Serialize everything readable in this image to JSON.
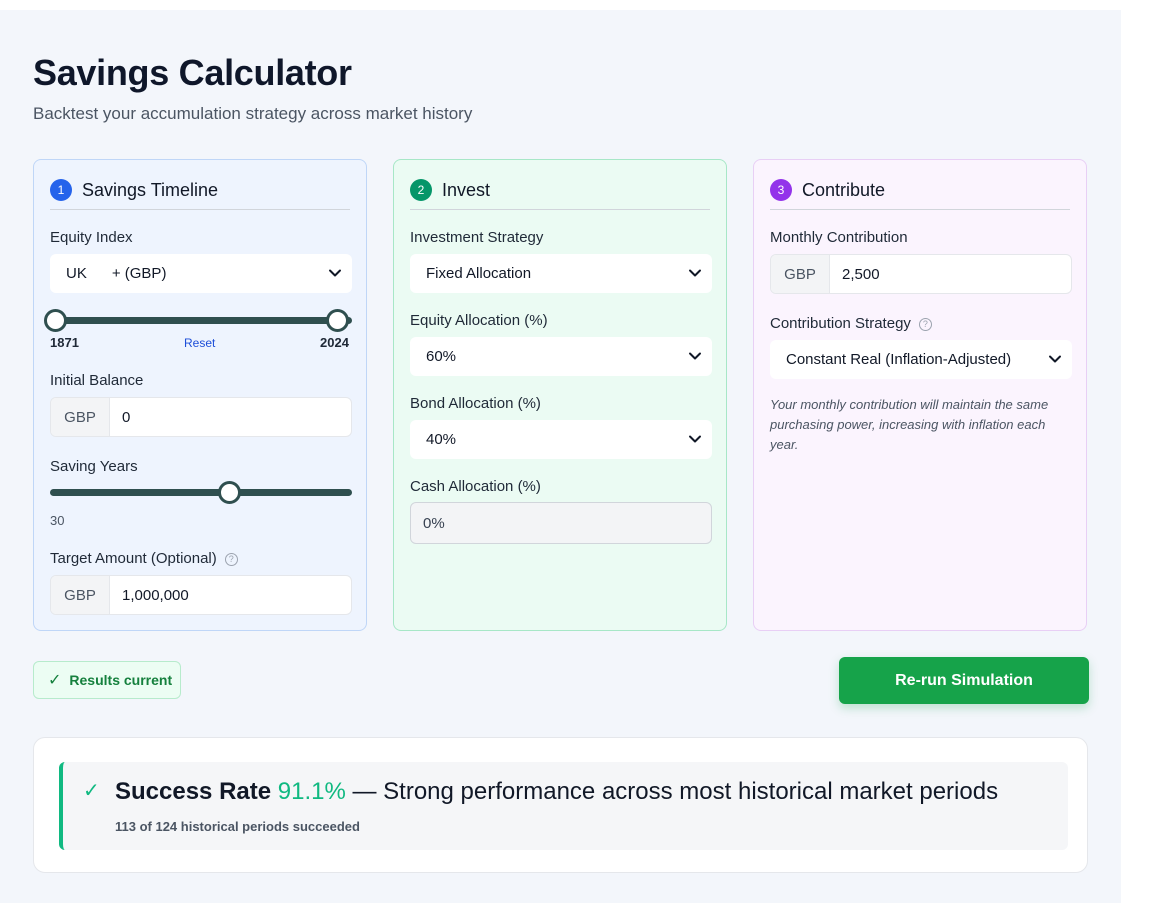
{
  "header": {
    "title": "Savings Calculator",
    "subtitle": "Backtest your accumulation strategy across market history"
  },
  "timeline": {
    "step": "1",
    "title": "Savings Timeline",
    "equity_index_label": "Equity Index",
    "equity_index_value": "UK      + (GBP)",
    "range_start": "1871",
    "range_end": "2024",
    "reset_label": "Reset",
    "initial_balance_label": "Initial Balance",
    "currency": "GBP",
    "initial_balance_value": "0",
    "saving_years_label": "Saving Years",
    "saving_years_value": "30",
    "saving_years_fraction": 0.59,
    "target_label": "Target Amount (Optional)",
    "target_value": "1,000,000"
  },
  "invest": {
    "step": "2",
    "title": "Invest",
    "strategy_label": "Investment Strategy",
    "strategy_value": "Fixed Allocation",
    "equity_label": "Equity Allocation (%)",
    "equity_value": "60%",
    "bond_label": "Bond Allocation (%)",
    "bond_value": "40%",
    "cash_label": "Cash Allocation (%)",
    "cash_value": "0%"
  },
  "contribute": {
    "step": "3",
    "title": "Contribute",
    "monthly_label": "Monthly Contribution",
    "currency": "GBP",
    "monthly_value": "2,500",
    "strategy_label": "Contribution Strategy",
    "strategy_value": "Constant Real (Inflation-Adjusted)",
    "note": "Your monthly contribution will maintain the same purchasing power, increasing with inflation each year."
  },
  "status": {
    "tick": "✓",
    "label": "Results current"
  },
  "actions": {
    "rerun_label": "Re-run Simulation"
  },
  "result": {
    "check": "✓",
    "prefix": "Success Rate",
    "rate": "91.1%",
    "description": "— Strong performance across most historical market periods",
    "detail": "113 of 124 historical periods succeeded"
  },
  "colors": {
    "accent_green": "#16a34a",
    "success": "#10b981",
    "step1": "#2563eb",
    "step2": "#059669",
    "step3": "#9333ea",
    "slider": "#2f4f4f"
  }
}
